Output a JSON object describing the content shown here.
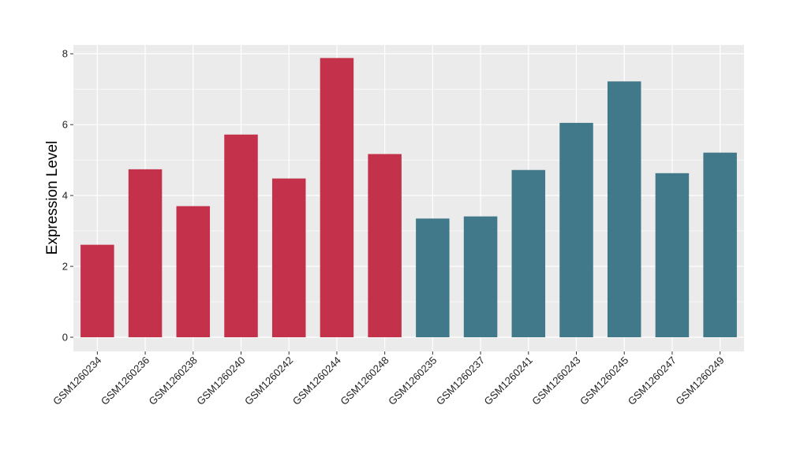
{
  "chart_data": {
    "type": "bar",
    "title": "",
    "xlabel": "",
    "ylabel": "Expression Level",
    "ylim": [
      -0.4,
      8.25
    ],
    "yticks": [
      0,
      2,
      4,
      6,
      8
    ],
    "grid": true,
    "categories": [
      "GSM1260234",
      "GSM1260236",
      "GSM1260238",
      "GSM1260240",
      "GSM1260242",
      "GSM1260244",
      "GSM1260248",
      "GSM1260235",
      "GSM1260237",
      "GSM1260241",
      "GSM1260243",
      "GSM1260245",
      "GSM1260247",
      "GSM1260249"
    ],
    "values": [
      2.61,
      4.74,
      3.7,
      5.72,
      4.48,
      7.88,
      5.17,
      3.35,
      3.41,
      4.72,
      6.05,
      7.22,
      4.63,
      5.21
    ],
    "bar_colors": [
      "#c3314a",
      "#c3314a",
      "#c3314a",
      "#c3314a",
      "#c3314a",
      "#c3314a",
      "#c3314a",
      "#42798a",
      "#42798a",
      "#42798a",
      "#42798a",
      "#42798a",
      "#42798a",
      "#42798a"
    ],
    "panel_background": "#ebebeb"
  }
}
